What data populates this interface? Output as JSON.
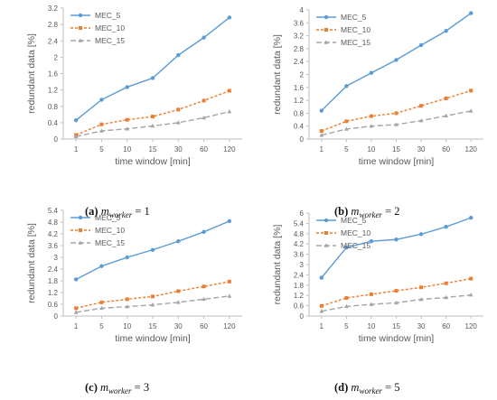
{
  "colors": {
    "MEC_5": "#5b9bd5",
    "MEC_10": "#ed7d31",
    "MEC_15": "#a5a5a5",
    "axis": "#595959",
    "grid": "#d9d9d9"
  },
  "chart_data": [
    {
      "type": "line",
      "caption": {
        "label": "(a)",
        "var": "m",
        "sub": "worker",
        "rest": "= 1"
      },
      "xlabel": "time window [min]",
      "ylabel": "redundant data [%]",
      "categories": [
        "1",
        "5",
        "10",
        "15",
        "30",
        "60",
        "120"
      ],
      "ylim": [
        0,
        3.2
      ],
      "yticks": [
        "0",
        "0.4",
        "0.8",
        "1.2",
        "1.6",
        "2",
        "2.4",
        "2.8",
        "3.2"
      ],
      "grid": false,
      "legend": "top-left",
      "series": [
        {
          "name": "MEC_5",
          "values": [
            0.46,
            0.96,
            1.27,
            1.49,
            2.05,
            2.48,
            2.97
          ]
        },
        {
          "name": "MEC_10",
          "values": [
            0.1,
            0.36,
            0.47,
            0.55,
            0.72,
            0.94,
            1.18
          ]
        },
        {
          "name": "MEC_15",
          "values": [
            0.06,
            0.2,
            0.25,
            0.32,
            0.4,
            0.52,
            0.67
          ]
        }
      ]
    },
    {
      "type": "line",
      "caption": {
        "label": "(b)",
        "var": "m",
        "sub": "worker",
        "rest": "= 2"
      },
      "xlabel": "time window [min]",
      "ylabel": "redundant data [%]",
      "categories": [
        "1",
        "5",
        "10",
        "15",
        "30",
        "60",
        "120"
      ],
      "ylim": [
        0,
        4
      ],
      "yticks": [
        "0",
        "0.4",
        "0.8",
        "1.2",
        "1.6",
        "2",
        "2.4",
        "2.8",
        "3.2",
        "3.6",
        "4"
      ],
      "grid": false,
      "legend": "top-left",
      "series": [
        {
          "name": "MEC_5",
          "values": [
            0.88,
            1.64,
            2.05,
            2.45,
            2.91,
            3.35,
            3.9
          ]
        },
        {
          "name": "MEC_10",
          "values": [
            0.25,
            0.55,
            0.71,
            0.8,
            1.03,
            1.26,
            1.5
          ]
        },
        {
          "name": "MEC_15",
          "values": [
            0.12,
            0.31,
            0.4,
            0.45,
            0.57,
            0.72,
            0.87
          ]
        }
      ]
    },
    {
      "type": "line",
      "caption": {
        "label": "(c)",
        "var": "m",
        "sub": "worker",
        "rest": "= 3"
      },
      "xlabel": "time window [min]",
      "ylabel": "redundant data [%]",
      "categories": [
        "1",
        "5",
        "10",
        "15",
        "30",
        "60",
        "120"
      ],
      "ylim": [
        0,
        5.4
      ],
      "yticks": [
        "0",
        "0.6",
        "1.2",
        "1.8",
        "2.4",
        "3",
        "3.6",
        "4.2",
        "4.8",
        "5.4"
      ],
      "grid": false,
      "legend": "top-left",
      "series": [
        {
          "name": "MEC_5",
          "values": [
            1.87,
            2.55,
            3.0,
            3.38,
            3.82,
            4.3,
            4.85
          ]
        },
        {
          "name": "MEC_10",
          "values": [
            0.4,
            0.7,
            0.86,
            1.0,
            1.27,
            1.51,
            1.76
          ]
        },
        {
          "name": "MEC_15",
          "values": [
            0.19,
            0.4,
            0.48,
            0.57,
            0.7,
            0.86,
            1.02
          ]
        }
      ]
    },
    {
      "type": "line",
      "caption": {
        "label": "(d)",
        "var": "m",
        "sub": "worker",
        "rest": "= 5"
      },
      "xlabel": "time window [min]",
      "ylabel": "redundant data [%]",
      "categories": [
        "1",
        "5",
        "10",
        "15",
        "30",
        "60",
        "120"
      ],
      "ylim": [
        0,
        6
      ],
      "yticks": [
        "0",
        "0.6",
        "1.2",
        "1.8",
        "2.4",
        "3",
        "3.6",
        "4.2",
        "4.8",
        "5.4",
        "6"
      ],
      "grid": false,
      "legend": "top-left",
      "series": [
        {
          "name": "MEC_5",
          "values": [
            2.23,
            3.99,
            4.36,
            4.46,
            4.77,
            5.2,
            5.73
          ]
        },
        {
          "name": "MEC_10",
          "values": [
            0.59,
            1.05,
            1.27,
            1.47,
            1.67,
            1.91,
            2.18
          ]
        },
        {
          "name": "MEC_15",
          "values": [
            0.28,
            0.56,
            0.68,
            0.77,
            0.97,
            1.08,
            1.23
          ]
        }
      ]
    }
  ]
}
